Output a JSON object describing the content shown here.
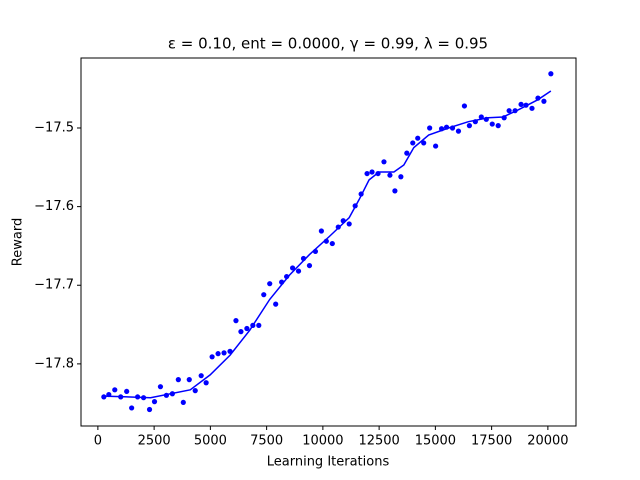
{
  "chart_data": {
    "type": "scatter",
    "title": "ε = 0.10, ent = 0.0000, γ = 0.99, λ = 0.95",
    "x_label": "Learning Iterations",
    "y_label": "Reward",
    "xlim": [
      -750,
      21250
    ],
    "ylim": [
      -17.879,
      -17.411
    ],
    "xticks": [
      0,
      2500,
      5000,
      7500,
      10000,
      12500,
      15000,
      17500,
      20000
    ],
    "yticks": [
      {
        "value": -17.8,
        "label": "−17.8"
      },
      {
        "value": -17.7,
        "label": "−17.7"
      },
      {
        "value": -17.6,
        "label": "−17.6"
      },
      {
        "value": -17.5,
        "label": "−17.5"
      }
    ],
    "series": [
      {
        "color": "#0000ff",
        "mode": "markers",
        "x": [
          265,
          486,
          751,
          1015,
          1280,
          1501,
          1766,
          2031,
          2296,
          2517,
          2781,
          3046,
          3311,
          3576,
          3797,
          4062,
          4327,
          4592,
          4812,
          5077,
          5342,
          5607,
          5872,
          6137,
          6358,
          6623,
          6888,
          7152,
          7373,
          7638,
          7903,
          8168,
          8389,
          8654,
          8918,
          9139,
          9404,
          9669,
          9934,
          10154,
          10419,
          10684,
          10905,
          11170,
          11435,
          11700,
          11964,
          12185,
          12450,
          12715,
          12980,
          13201,
          13466,
          13731,
          13995,
          14216,
          14481,
          14746,
          15011,
          15276,
          15497,
          15762,
          16026,
          16291,
          16512,
          16777,
          17042,
          17263,
          17528,
          17792,
          18057,
          18278,
          18543,
          18808,
          19029,
          19294,
          19559,
          19824,
          20133
        ],
        "values": [
          -17.842,
          -17.839,
          -17.833,
          -17.842,
          -17.835,
          -17.856,
          -17.842,
          -17.843,
          -17.858,
          -17.848,
          -17.829,
          -17.84,
          -17.838,
          -17.82,
          -17.849,
          -17.82,
          -17.834,
          -17.815,
          -17.824,
          -17.791,
          -17.787,
          -17.786,
          -17.784,
          -17.745,
          -17.759,
          -17.755,
          -17.751,
          -17.751,
          -17.712,
          -17.698,
          -17.724,
          -17.696,
          -17.689,
          -17.678,
          -17.682,
          -17.666,
          -17.675,
          -17.657,
          -17.631,
          -17.644,
          -17.647,
          -17.626,
          -17.618,
          -17.622,
          -17.599,
          -17.584,
          -17.558,
          -17.556,
          -17.558,
          -17.543,
          -17.56,
          -17.58,
          -17.562,
          -17.532,
          -17.519,
          -17.513,
          -17.519,
          -17.5,
          -17.523,
          -17.501,
          -17.499,
          -17.5,
          -17.504,
          -17.472,
          -17.497,
          -17.492,
          -17.486,
          -17.489,
          -17.495,
          -17.497,
          -17.487,
          -17.478,
          -17.478,
          -17.47,
          -17.471,
          -17.475,
          -17.462,
          -17.466,
          -17.431
        ]
      },
      {
        "color": "#0000ff",
        "mode": "line",
        "x": [
          265,
          2340,
          4106,
          4989,
          5872,
          6755,
          7638,
          8521,
          9404,
          10287,
          11170,
          11612,
          12053,
          12495,
          13157,
          13598,
          14040,
          14702,
          15585,
          16468,
          17351,
          18013,
          18675,
          19559,
          20133
        ],
        "values": [
          -17.841,
          -17.843,
          -17.833,
          -17.814,
          -17.789,
          -17.757,
          -17.718,
          -17.687,
          -17.661,
          -17.638,
          -17.614,
          -17.591,
          -17.566,
          -17.556,
          -17.556,
          -17.547,
          -17.525,
          -17.509,
          -17.5,
          -17.492,
          -17.487,
          -17.486,
          -17.477,
          -17.464,
          -17.453
        ]
      }
    ]
  }
}
